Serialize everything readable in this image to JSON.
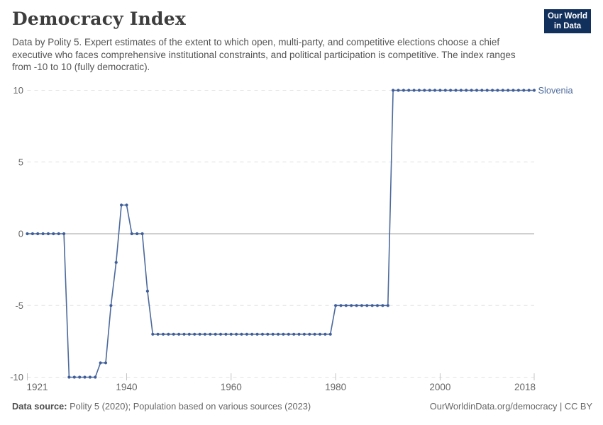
{
  "header": {
    "title": "Democracy Index",
    "subtitle": "Data by Polity 5. Expert estimates of the extent to which open, multi-party, and competitive elections choose a chief executive who faces comprehensive institutional constraints, and political participation is competitive. The index ranges from -10 to 10 (fully democratic).",
    "logo": {
      "line1": "Our World",
      "line2": "in Data",
      "bg_color": "#12305C",
      "bar_color": "#C5291D"
    }
  },
  "footer": {
    "source_label": "Data source:",
    "source_text": " Polity 5 (2020); Population based on various sources (2023)",
    "link_text": "OurWorldinData.org/democracy | CC BY"
  },
  "chart_data": {
    "type": "line",
    "title": "Democracy Index",
    "xlabel": "",
    "ylabel": "",
    "xlim": [
      1921,
      2018
    ],
    "ylim": [
      -10,
      10
    ],
    "grid": "horizontal dashed gridlines, solid gray zero line",
    "legend_position": "entity label right of line end",
    "x_ticks": [
      1921,
      1940,
      1960,
      1980,
      2000,
      2018
    ],
    "x_tick_labels": [
      "1921",
      "1940",
      "1960",
      "1980",
      "2000",
      "2018"
    ],
    "y_ticks": [
      10,
      5,
      0,
      -5,
      -10
    ],
    "y_tick_labels": [
      "10",
      "5",
      "0",
      "-5",
      "-10"
    ],
    "axis_text_color": "#666666",
    "gridline_color": "#e2e2e2",
    "zero_line_color": "#a0a0a0",
    "tick_mark_color": "#c4c4c4",
    "series": [
      {
        "name": "Slovenia",
        "line_color": "#4C6A9C",
        "point_color": "#3F5E99",
        "start_year": 1921,
        "values": [
          0,
          0,
          0,
          0,
          0,
          0,
          0,
          0,
          -10,
          -10,
          -10,
          -10,
          -10,
          -10,
          -9,
          -9,
          -5,
          -2,
          2,
          2,
          0,
          0,
          0,
          -4,
          -7,
          -7,
          -7,
          -7,
          -7,
          -7,
          -7,
          -7,
          -7,
          -7,
          -7,
          -7,
          -7,
          -7,
          -7,
          -7,
          -7,
          -7,
          -7,
          -7,
          -7,
          -7,
          -7,
          -7,
          -7,
          -7,
          -7,
          -7,
          -7,
          -7,
          -7,
          -7,
          -7,
          -7,
          -7,
          -5,
          -5,
          -5,
          -5,
          -5,
          -5,
          -5,
          -5,
          -5,
          -5,
          -5,
          10,
          10,
          10,
          10,
          10,
          10,
          10,
          10,
          10,
          10,
          10,
          10,
          10,
          10,
          10,
          10,
          10,
          10,
          10,
          10,
          10,
          10,
          10,
          10,
          10,
          10,
          10,
          10
        ]
      }
    ]
  }
}
